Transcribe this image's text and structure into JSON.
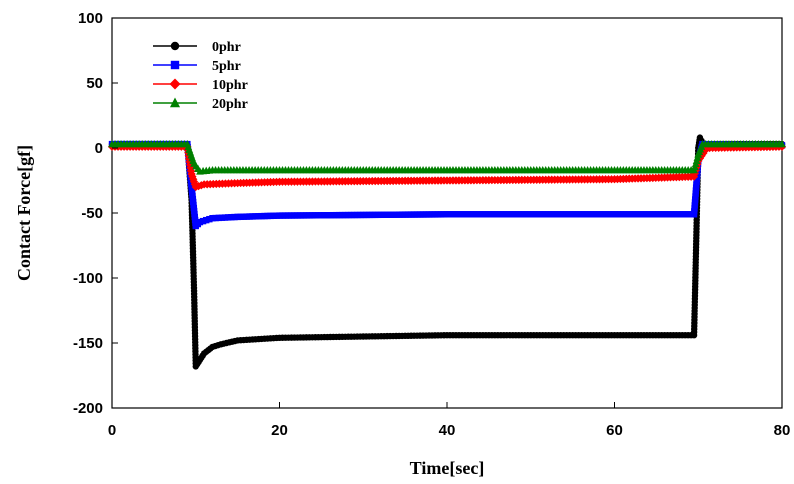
{
  "chart_data": {
    "type": "line",
    "title": "",
    "xlabel": "Time[sec]",
    "ylabel": "Contact Force[gf]",
    "xlim": [
      0,
      80
    ],
    "ylim": [
      -200,
      100
    ],
    "xticks": [
      0,
      20,
      40,
      60,
      80
    ],
    "yticks": [
      100,
      50,
      0,
      -50,
      -100,
      -150,
      -200
    ],
    "grid": false,
    "legend": "top-left",
    "series": [
      {
        "name": "0phr",
        "color": "#000000",
        "marker": "circle",
        "points": [
          [
            0,
            3
          ],
          [
            9,
            3
          ],
          [
            9.5,
            -40
          ],
          [
            9.8,
            -110
          ],
          [
            10,
            -168
          ],
          [
            10.5,
            -163
          ],
          [
            11,
            -158
          ],
          [
            12,
            -153
          ],
          [
            13,
            -151
          ],
          [
            15,
            -148
          ],
          [
            20,
            -146
          ],
          [
            30,
            -145
          ],
          [
            40,
            -144
          ],
          [
            50,
            -144
          ],
          [
            60,
            -144
          ],
          [
            69.5,
            -144
          ],
          [
            69.8,
            -60
          ],
          [
            70,
            0
          ],
          [
            70.2,
            8
          ],
          [
            70.6,
            3
          ],
          [
            80,
            3
          ]
        ]
      },
      {
        "name": "5phr",
        "color": "#0000ff",
        "marker": "square",
        "points": [
          [
            0,
            3
          ],
          [
            9,
            3
          ],
          [
            9.5,
            -30
          ],
          [
            10,
            -60
          ],
          [
            10.5,
            -57
          ],
          [
            12,
            -54
          ],
          [
            15,
            -53
          ],
          [
            20,
            -52
          ],
          [
            40,
            -51
          ],
          [
            60,
            -51
          ],
          [
            69.5,
            -51
          ],
          [
            70,
            -10
          ],
          [
            70.5,
            3
          ],
          [
            80,
            2
          ]
        ]
      },
      {
        "name": "10phr",
        "color": "#ff0000",
        "marker": "diamond",
        "points": [
          [
            0,
            1
          ],
          [
            9,
            1
          ],
          [
            9.5,
            -20
          ],
          [
            10,
            -30
          ],
          [
            11,
            -28
          ],
          [
            15,
            -27
          ],
          [
            20,
            -26
          ],
          [
            40,
            -25
          ],
          [
            60,
            -24
          ],
          [
            69.5,
            -22
          ],
          [
            70,
            -10
          ],
          [
            71,
            0
          ],
          [
            80,
            1
          ]
        ]
      },
      {
        "name": "20phr",
        "color": "#008000",
        "marker": "triangle",
        "points": [
          [
            0,
            3
          ],
          [
            9,
            3
          ],
          [
            9.8,
            -12
          ],
          [
            10.5,
            -18
          ],
          [
            12,
            -17
          ],
          [
            20,
            -17
          ],
          [
            40,
            -17
          ],
          [
            60,
            -17
          ],
          [
            69.5,
            -17
          ],
          [
            70,
            -5
          ],
          [
            70.5,
            3
          ],
          [
            80,
            3
          ]
        ]
      }
    ]
  }
}
